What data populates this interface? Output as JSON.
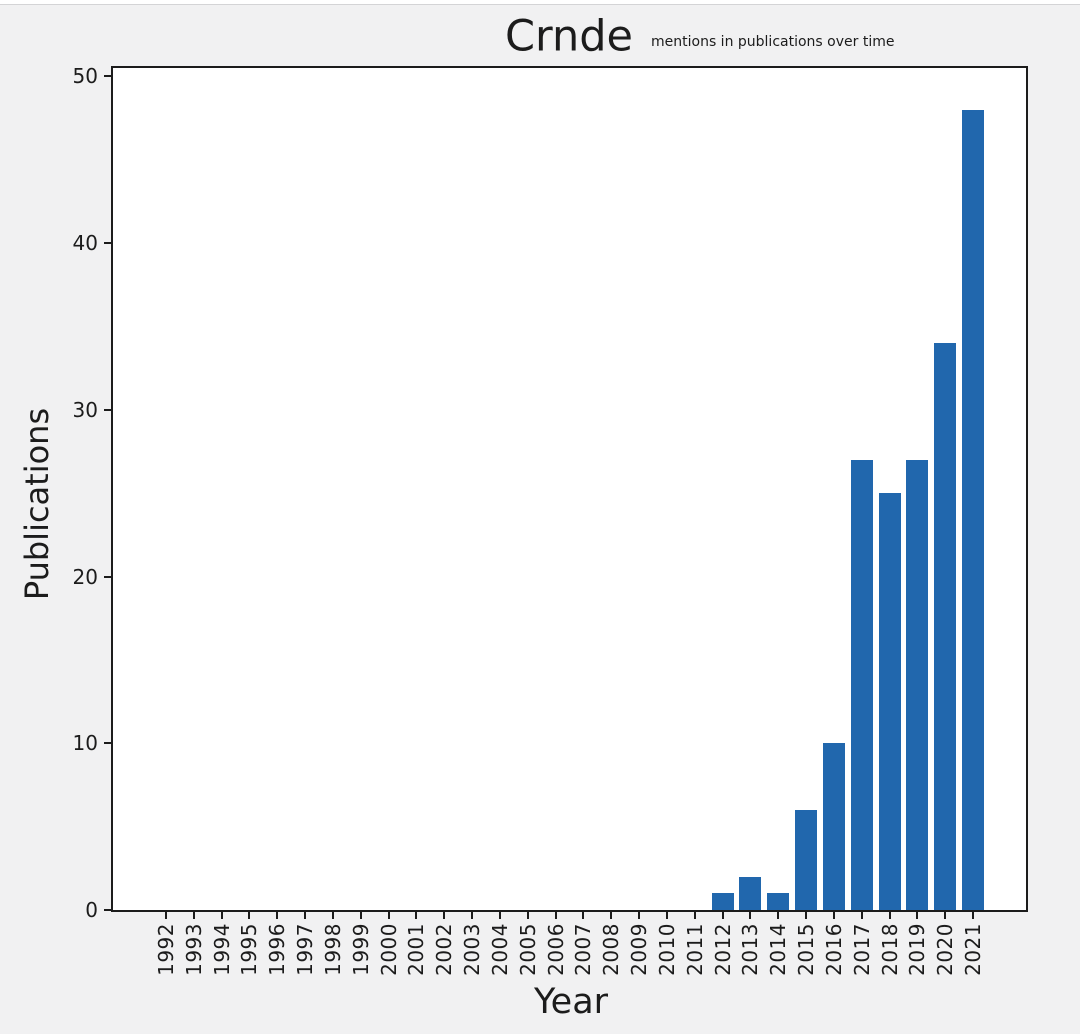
{
  "chart_data": {
    "type": "bar",
    "title": "Crnde",
    "subtitle": "mentions in publications over time",
    "xlabel": "Year",
    "ylabel": "Publications",
    "categories": [
      "1992",
      "1993",
      "1994",
      "1995",
      "1996",
      "1997",
      "1998",
      "1999",
      "2000",
      "2001",
      "2002",
      "2003",
      "2004",
      "2005",
      "2006",
      "2007",
      "2008",
      "2009",
      "2010",
      "2011",
      "2012",
      "2013",
      "2014",
      "2015",
      "2016",
      "2017",
      "2018",
      "2019",
      "2020",
      "2021"
    ],
    "values": [
      0,
      0,
      0,
      0,
      0,
      0,
      0,
      0,
      0,
      0,
      0,
      0,
      0,
      0,
      0,
      0,
      0,
      0,
      0,
      0,
      1,
      2,
      1,
      6,
      10,
      27,
      25,
      27,
      34,
      48
    ],
    "yticks": [
      0,
      10,
      20,
      30,
      40,
      50
    ],
    "ylim": [
      0,
      50.5
    ],
    "grid": false,
    "legend": "none",
    "bar_color": "#2167ad",
    "figure_background": "#f1f1f2",
    "plot_background": "#ffffff",
    "axis_color": "#1c1c1c"
  }
}
